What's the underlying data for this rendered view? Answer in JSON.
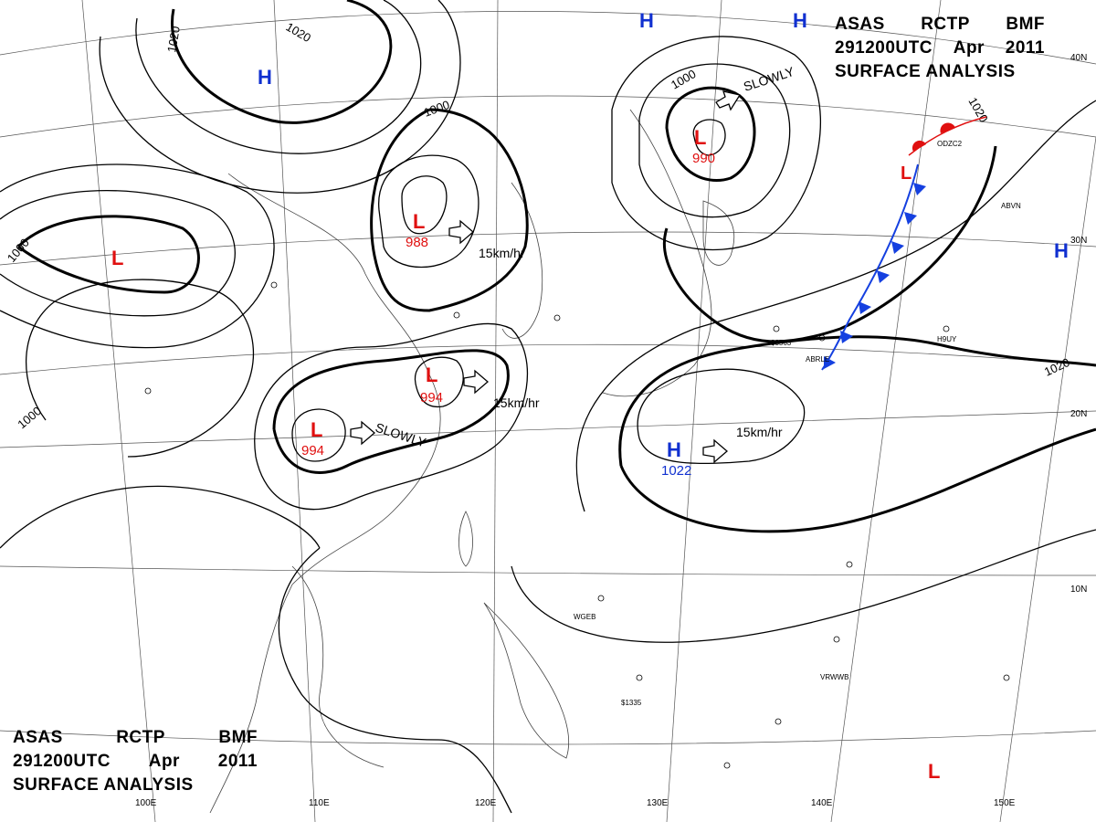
{
  "header": {
    "line1": [
      "ASAS",
      "RCTP",
      "BMF"
    ],
    "line2": [
      "291200UTC",
      "Apr",
      "2011"
    ],
    "line3": "SURFACE ANALYSIS"
  },
  "pressure_centers": [
    {
      "type": "H",
      "value": ""
    },
    {
      "type": "H",
      "value": ""
    },
    {
      "type": "H",
      "value": ""
    },
    {
      "type": "H",
      "value": ""
    },
    {
      "type": "H",
      "value": "1022"
    },
    {
      "type": "L",
      "value": ""
    },
    {
      "type": "L",
      "value": "988"
    },
    {
      "type": "L",
      "value": "994"
    },
    {
      "type": "L",
      "value": "994"
    },
    {
      "type": "L",
      "value": "990"
    },
    {
      "type": "L",
      "value": ""
    },
    {
      "type": "L",
      "value": ""
    }
  ],
  "isobar_labels": [
    "1020",
    "1020",
    "1000",
    "1000",
    "1000",
    "1000",
    "1020",
    "1020"
  ],
  "movement_labels": [
    "15km/hr",
    "15km/hr",
    "SLOWLY",
    "SLOWLY",
    "15km/hr"
  ],
  "grid_labels": {
    "longitude": [
      "100E",
      "110E",
      "120E",
      "130E",
      "140E",
      "150E"
    ],
    "latitude": [
      "40N",
      "30N",
      "20N",
      "10N"
    ]
  },
  "station_labels": [
    "WGEB",
    "VRWWB",
    "ABRLE",
    "H9UY",
    "ODZC2",
    "ABVN",
    "$1335",
    "$3563"
  ],
  "colors": {
    "high": "#1030d0",
    "low": "#e01010",
    "cold_front": "#1540e0",
    "warm_front": "#e01010",
    "isobar": "#000000",
    "coast": "#444444"
  },
  "icons": [
    "movement-arrow-icon",
    "cold-front-triangle-icon",
    "warm-front-semicircle-icon",
    "station-circle-icon"
  ]
}
